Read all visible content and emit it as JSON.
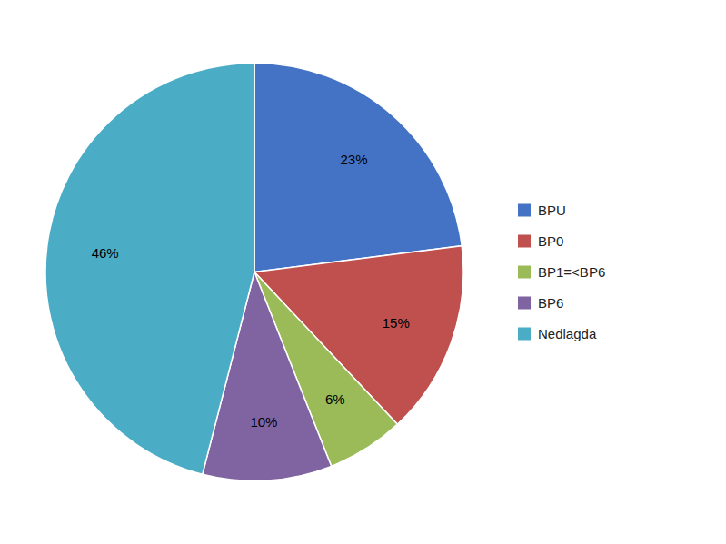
{
  "chart_data": {
    "type": "pie",
    "categories": [
      "BPU",
      "BP0",
      "BP1=<BP6",
      "BP6",
      "Nedlagda"
    ],
    "values": [
      23,
      15,
      6,
      10,
      46
    ],
    "value_labels": [
      "23%",
      "15%",
      "6%",
      "10%",
      "46%"
    ],
    "colors": [
      "#4472C4",
      "#C0504D",
      "#9BBB59",
      "#8064A2",
      "#4BACC6"
    ],
    "data_labels": true,
    "legend": "right"
  }
}
